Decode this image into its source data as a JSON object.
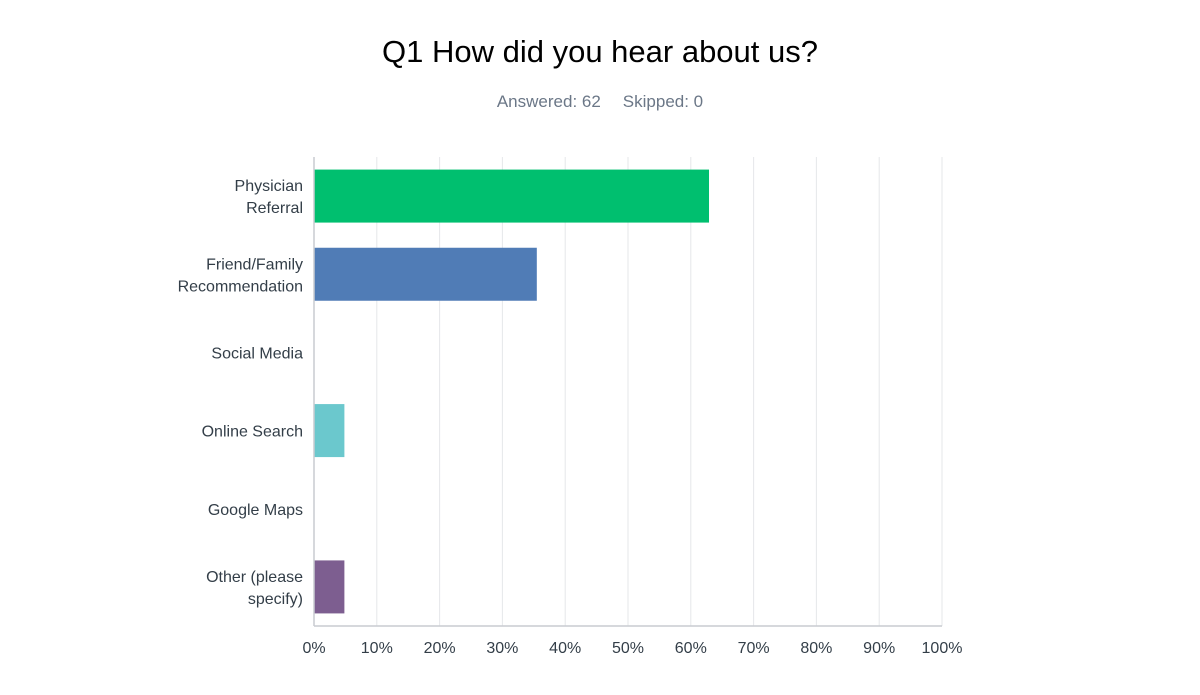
{
  "header": {
    "title": "Q1 How did you hear about us?",
    "answered_label": "Answered: 62",
    "skipped_label": "Skipped: 0"
  },
  "chart_data": {
    "type": "bar",
    "orientation": "horizontal",
    "title": "Q1 How did you hear about us?",
    "xlabel": "",
    "ylabel": "",
    "xlim": [
      0,
      100
    ],
    "x_unit": "%",
    "grid": true,
    "legend": "none",
    "ticks": [
      "0%",
      "10%",
      "20%",
      "30%",
      "40%",
      "50%",
      "60%",
      "70%",
      "80%",
      "90%",
      "100%"
    ],
    "categories": [
      [
        "Physician",
        "Referral"
      ],
      [
        "Friend/Family",
        "Recommendation"
      ],
      [
        "Social Media"
      ],
      [
        "Online Search"
      ],
      [
        "Google Maps"
      ],
      [
        "Other (please",
        "specify)"
      ]
    ],
    "values": [
      62.9,
      35.48,
      0,
      4.84,
      0,
      4.84
    ],
    "colors": [
      "#00bf6f",
      "#507cb6",
      "#f9be00",
      "#6bc8cd",
      "#ff8b4f",
      "#7d5e90"
    ]
  }
}
